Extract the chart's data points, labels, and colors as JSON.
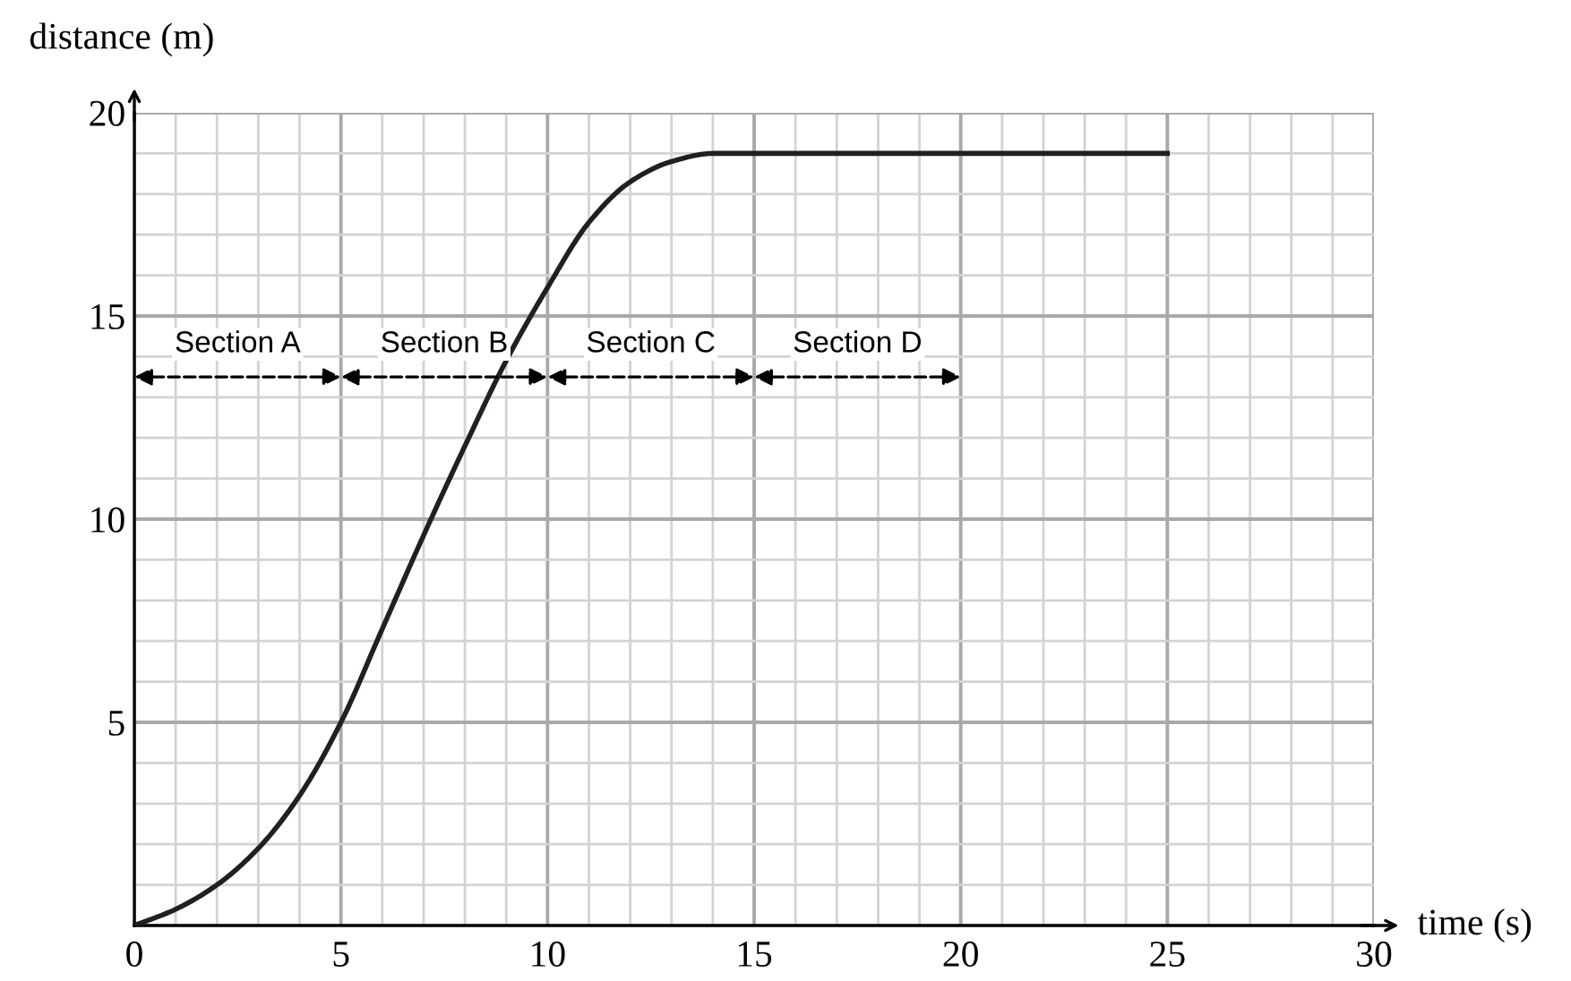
{
  "chart_data": {
    "type": "line",
    "xlabel": "time (s)",
    "ylabel": "distance (m)",
    "x": [
      0,
      1,
      2,
      3,
      4,
      5,
      6,
      7,
      8,
      9,
      10,
      11,
      12,
      13,
      14,
      15,
      20,
      25
    ],
    "series": [
      {
        "color": "#231f20",
        "values": [
          0,
          0.4,
          1.0,
          1.9,
          3.2,
          5,
          7.3,
          9.6,
          11.8,
          13.9,
          15.7,
          17.3,
          18.3,
          18.8,
          19.0,
          19,
          19,
          19
        ]
      }
    ],
    "xlim": [
      0,
      30
    ],
    "ylim": [
      0,
      20
    ],
    "xticks": [
      0,
      5,
      10,
      15,
      20,
      25,
      30
    ],
    "yticks": [
      5,
      10,
      15,
      20
    ],
    "grid": true,
    "marker": "none",
    "line_style": "solid",
    "annotations": [
      "Section A",
      "Section B",
      "Section C",
      "Section D"
    ]
  }
}
